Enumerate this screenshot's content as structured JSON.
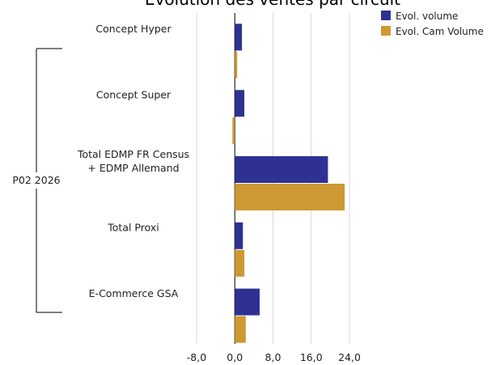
{
  "chart_data": {
    "type": "bar",
    "orientation": "horizontal",
    "title": "Evolution des ventes par circuit",
    "group_label": "P02 2026",
    "categories": [
      [
        "Concept Hyper"
      ],
      [
        "Concept Super"
      ],
      [
        "Total EDMP FR Census",
        "+ EDMP Allemand"
      ],
      [
        "Total Proxi"
      ],
      [
        "E-Commerce GSA"
      ]
    ],
    "series": [
      {
        "name": "Evol. volume",
        "color": "#2e3192",
        "values": [
          1.5,
          2.0,
          19.5,
          1.7,
          5.2
        ]
      },
      {
        "name": "Evol. Cam Volume",
        "color": "#cc9933",
        "values": [
          0.5,
          -0.5,
          23.0,
          2.0,
          2.3
        ]
      }
    ],
    "xlim": [
      -8,
      24
    ],
    "xticks": [
      "-8,0",
      "0,0",
      "8,0",
      "16,0",
      "24,0"
    ],
    "xtick_values": [
      -8,
      0,
      8,
      16,
      24
    ],
    "grid": true,
    "legend_position": "top-right"
  }
}
